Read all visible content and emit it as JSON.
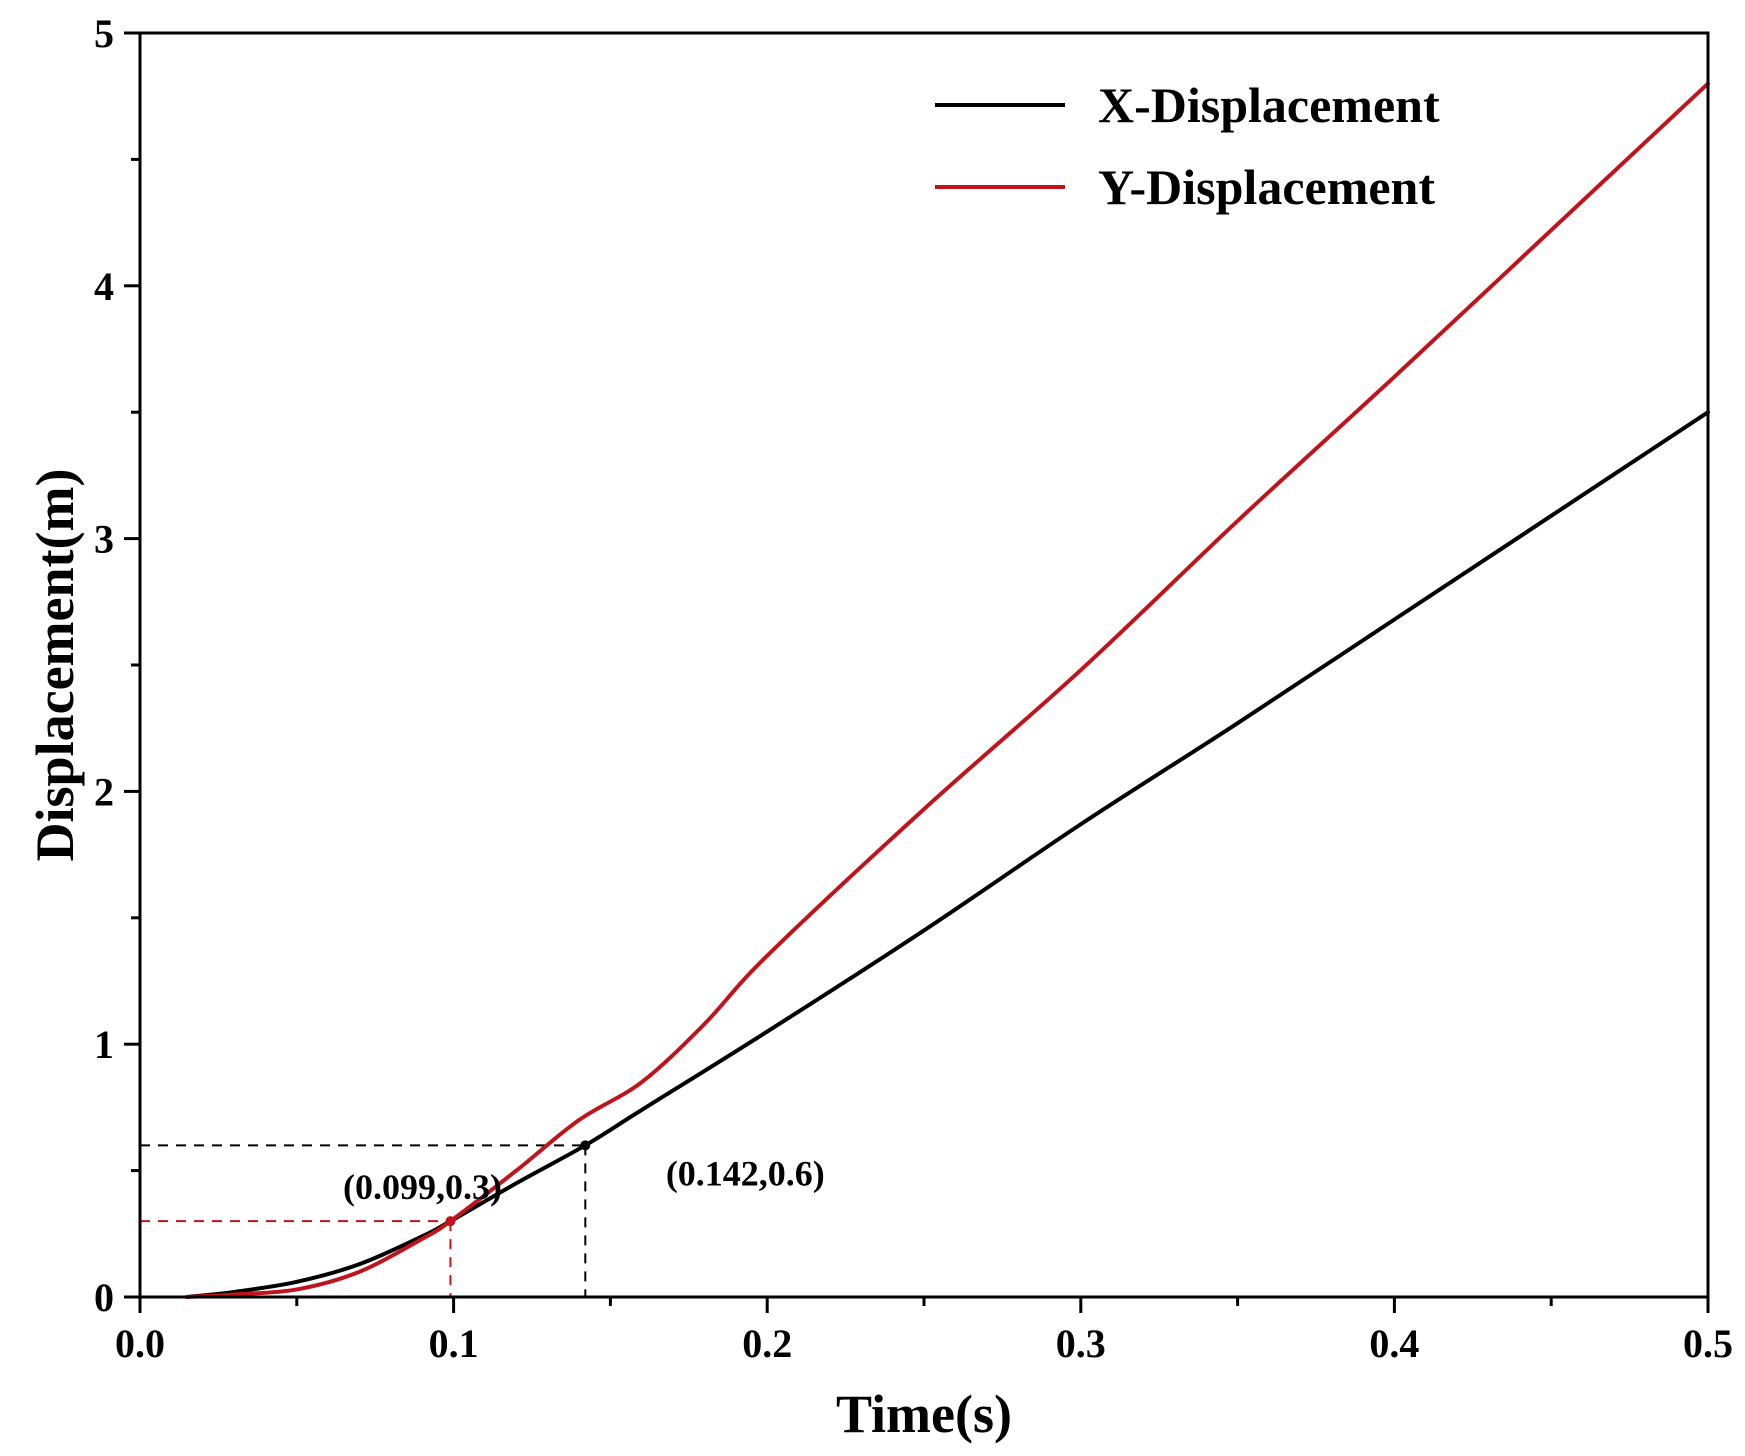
{
  "chart_data": {
    "type": "line",
    "title": "",
    "xlabel": "Time(s)",
    "ylabel": "Displacement(m)",
    "xlim": [
      0.0,
      0.5
    ],
    "ylim": [
      0,
      5
    ],
    "xticks": [
      "0.0",
      "0.1",
      "0.2",
      "0.3",
      "0.4",
      "0.5"
    ],
    "yticks": [
      "0",
      "1",
      "2",
      "3",
      "4",
      "5"
    ],
    "xtick_values": [
      0.0,
      0.1,
      0.2,
      0.3,
      0.4,
      0.5
    ],
    "ytick_values": [
      0,
      1,
      2,
      3,
      4,
      5
    ],
    "x_minor_ticks": [
      0.05,
      0.15,
      0.25,
      0.35,
      0.45
    ],
    "y_minor_ticks": [
      0.5,
      1.5,
      2.5,
      3.5,
      4.5
    ],
    "grid": false,
    "legend_position": "top-right",
    "series": [
      {
        "name": "X-Displacement",
        "color": "#000000",
        "x": [
          0.015,
          0.03,
          0.05,
          0.07,
          0.09,
          0.099,
          0.12,
          0.142,
          0.16,
          0.2,
          0.25,
          0.3,
          0.35,
          0.4,
          0.45,
          0.5
        ],
        "y": [
          0.0,
          0.02,
          0.06,
          0.13,
          0.24,
          0.3,
          0.45,
          0.6,
          0.74,
          1.05,
          1.45,
          1.87,
          2.27,
          2.68,
          3.09,
          3.5
        ]
      },
      {
        "name": "Y-Displacement",
        "color": "#c0141c",
        "x": [
          0.015,
          0.03,
          0.05,
          0.07,
          0.09,
          0.099,
          0.12,
          0.14,
          0.16,
          0.18,
          0.2,
          0.25,
          0.3,
          0.35,
          0.4,
          0.45,
          0.5
        ],
        "y": [
          0.0,
          0.01,
          0.03,
          0.1,
          0.23,
          0.3,
          0.5,
          0.7,
          0.85,
          1.08,
          1.35,
          1.93,
          2.48,
          3.07,
          3.64,
          4.22,
          4.8
        ]
      }
    ],
    "annotations": [
      {
        "text": "(0.099,0.3)",
        "x": 0.099,
        "y": 0.3,
        "color": "#c0141c"
      },
      {
        "text": "(0.142,0.6)",
        "x": 0.142,
        "y": 0.6,
        "color": "#000000"
      }
    ]
  }
}
